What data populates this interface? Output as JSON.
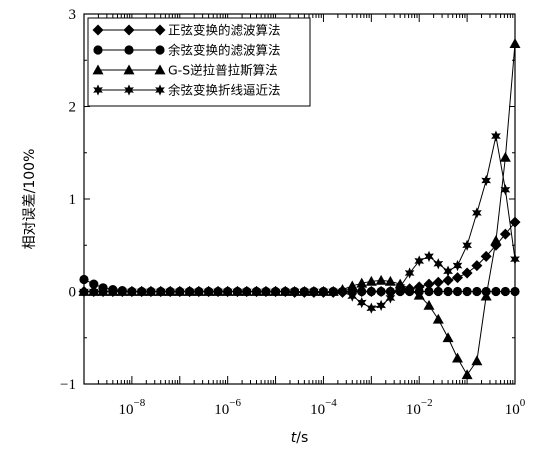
{
  "chart_data": {
    "type": "line",
    "x_scale": "log",
    "xlim": [
      1e-09,
      1
    ],
    "ylim": [
      -1,
      3
    ],
    "xlabel": "t/s",
    "ylabel": "相对误差/100%",
    "x_ticks": [
      "10-8",
      "10-6",
      "10-4",
      "10-2",
      "100"
    ],
    "y_ticks": [
      "-1",
      "0",
      "1",
      "2",
      "3"
    ],
    "legend_position": "top-left",
    "series": [
      {
        "name": "正弦变换的滤波算法",
        "marker": "diamond",
        "x": [
          1e-09,
          1.6e-09,
          2.5e-09,
          4e-09,
          6.3e-09,
          1e-08,
          1.6e-08,
          2.5e-08,
          4e-08,
          6.3e-08,
          1e-07,
          1.6e-07,
          2.5e-07,
          4e-07,
          6.3e-07,
          1e-06,
          1.6e-06,
          2.5e-06,
          4e-06,
          6.3e-06,
          1e-05,
          1.6e-05,
          2.5e-05,
          4e-05,
          6.3e-05,
          0.0001,
          0.00016,
          0.00025,
          0.0004,
          0.00063,
          0.001,
          0.0016,
          0.0025,
          0.004,
          0.0063,
          0.01,
          0.016,
          0.025,
          0.04,
          0.063,
          0.1,
          0.16,
          0.25,
          0.4,
          0.63,
          1
        ],
        "y": [
          0,
          0,
          0,
          0,
          0,
          0,
          0,
          0,
          0,
          0,
          0,
          0,
          0,
          0,
          0,
          0,
          0,
          0,
          0,
          0,
          0,
          0,
          -0.01,
          -0.01,
          -0.01,
          -0.01,
          -0.01,
          -0.01,
          0,
          0,
          0,
          0,
          0,
          0.01,
          0.03,
          0.05,
          0.08,
          0.1,
          0.12,
          0.15,
          0.2,
          0.28,
          0.38,
          0.5,
          0.62,
          0.75
        ]
      },
      {
        "name": "余弦变换的滤波算法",
        "marker": "circle",
        "x": [
          1e-09,
          1.6e-09,
          2.5e-09,
          4e-09,
          6.3e-09,
          1e-08,
          1.6e-08,
          2.5e-08,
          4e-08,
          6.3e-08,
          1e-07,
          1.6e-07,
          2.5e-07,
          4e-07,
          6.3e-07,
          1e-06,
          1.6e-06,
          2.5e-06,
          4e-06,
          6.3e-06,
          1e-05,
          1.6e-05,
          2.5e-05,
          4e-05,
          6.3e-05,
          0.0001,
          0.00016,
          0.00025,
          0.0004,
          0.00063,
          0.001,
          0.0016,
          0.0025,
          0.004,
          0.0063,
          0.01,
          0.016,
          0.025,
          0.04,
          0.063,
          0.1,
          0.16,
          0.25,
          0.4,
          0.63,
          1
        ],
        "y": [
          0.13,
          0.08,
          0.04,
          0.02,
          0.01,
          0,
          0,
          0,
          0,
          0,
          0,
          0,
          0,
          0,
          0,
          0,
          0,
          0,
          0,
          0,
          0,
          0,
          0,
          0,
          0,
          0,
          0,
          0,
          0,
          0,
          0,
          0,
          0,
          0,
          0,
          0,
          0,
          0,
          0,
          0,
          0,
          0,
          0,
          0,
          0,
          0
        ]
      },
      {
        "name": "G-S逆拉普拉斯算法",
        "marker": "triangle",
        "x": [
          1e-09,
          1.6e-09,
          2.5e-09,
          4e-09,
          6.3e-09,
          1e-08,
          1.6e-08,
          2.5e-08,
          4e-08,
          6.3e-08,
          1e-07,
          1.6e-07,
          2.5e-07,
          4e-07,
          6.3e-07,
          1e-06,
          1.6e-06,
          2.5e-06,
          4e-06,
          6.3e-06,
          1e-05,
          1.6e-05,
          2.5e-05,
          4e-05,
          6.3e-05,
          0.0001,
          0.00016,
          0.00025,
          0.0004,
          0.00063,
          0.001,
          0.0016,
          0.0025,
          0.004,
          0.0063,
          0.01,
          0.016,
          0.025,
          0.04,
          0.063,
          0.1,
          0.16,
          0.25,
          0.4,
          0.63,
          1
        ],
        "y": [
          0,
          0,
          0,
          0,
          0,
          0,
          0,
          0,
          0,
          0,
          0,
          0,
          0,
          0,
          0,
          0,
          0,
          0,
          0,
          0,
          0,
          0,
          0,
          0,
          0,
          0,
          0,
          0.02,
          0.06,
          0.09,
          0.11,
          0.12,
          0.11,
          0.08,
          0.03,
          -0.04,
          -0.15,
          -0.3,
          -0.5,
          -0.72,
          -0.9,
          -0.75,
          -0.05,
          0.55,
          1.45,
          2.68
        ]
      },
      {
        "name": "余弦变换折线逼近法",
        "marker": "star",
        "x": [
          1e-09,
          1.6e-09,
          2.5e-09,
          4e-09,
          6.3e-09,
          1e-08,
          1.6e-08,
          2.5e-08,
          4e-08,
          6.3e-08,
          1e-07,
          1.6e-07,
          2.5e-07,
          4e-07,
          6.3e-07,
          1e-06,
          1.6e-06,
          2.5e-06,
          4e-06,
          6.3e-06,
          1e-05,
          1.6e-05,
          2.5e-05,
          4e-05,
          6.3e-05,
          0.0001,
          0.00016,
          0.00025,
          0.0004,
          0.00063,
          0.001,
          0.0016,
          0.0025,
          0.004,
          0.0063,
          0.01,
          0.016,
          0.025,
          0.04,
          0.063,
          0.1,
          0.16,
          0.25,
          0.4,
          0.63,
          1
        ],
        "y": [
          0,
          0,
          0,
          0,
          0,
          0,
          0,
          0,
          0,
          0,
          0,
          0,
          0,
          0,
          0,
          0,
          0,
          0,
          0,
          0,
          0,
          0,
          0,
          0,
          0,
          0,
          0,
          0,
          -0.05,
          -0.12,
          -0.18,
          -0.15,
          -0.07,
          0.05,
          0.2,
          0.33,
          0.38,
          0.3,
          0.22,
          0.28,
          0.5,
          0.85,
          1.2,
          1.68,
          1.1,
          0.35
        ]
      }
    ]
  }
}
